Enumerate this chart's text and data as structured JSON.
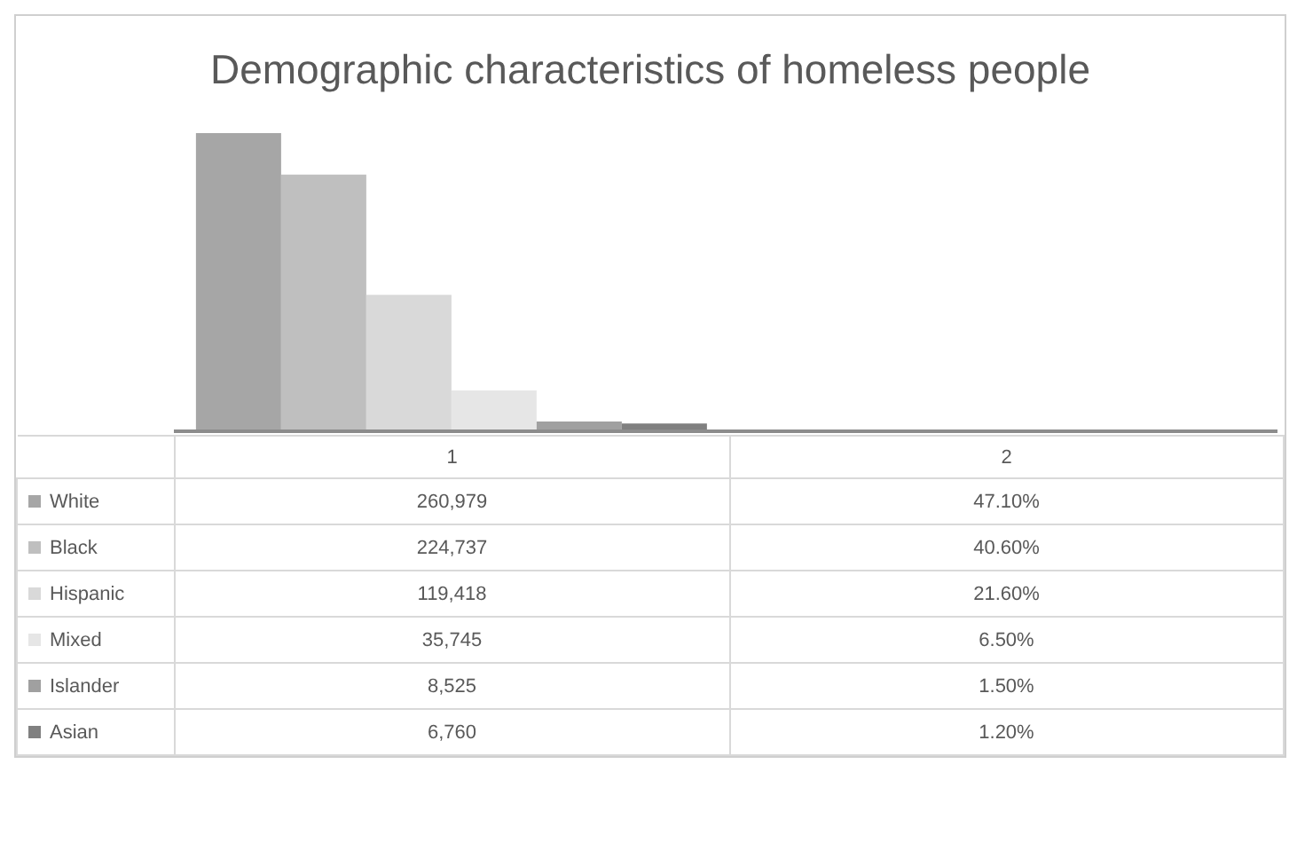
{
  "chart_data": {
    "type": "bar",
    "title": "Demographic characteristics of homeless people",
    "categories": [
      "1",
      "2"
    ],
    "legend": "bottom",
    "series": [
      {
        "name": "White",
        "color": "#a6a6a6",
        "values": [
          260979,
          47.1
        ],
        "value_labels": [
          "260,979",
          "47.10%"
        ]
      },
      {
        "name": "Black",
        "color": "#bfbfbf",
        "values": [
          224737,
          40.6
        ],
        "value_labels": [
          "224,737",
          "40.60%"
        ]
      },
      {
        "name": "Hispanic",
        "color": "#d9d9d9",
        "values": [
          119418,
          21.6
        ],
        "value_labels": [
          "119,418",
          "21.60%"
        ]
      },
      {
        "name": "Mixed",
        "color": "#e6e6e6",
        "values": [
          35745,
          6.5
        ],
        "value_labels": [
          "35,745",
          "6.50%"
        ]
      },
      {
        "name": "Islander",
        "color": "#a0a0a0",
        "values": [
          8525,
          1.5
        ],
        "value_labels": [
          "8,525",
          "1.50%"
        ]
      },
      {
        "name": "Asian",
        "color": "#808080",
        "values": [
          6760,
          1.2
        ],
        "value_labels": [
          "6,760",
          "1.20%"
        ]
      }
    ]
  }
}
